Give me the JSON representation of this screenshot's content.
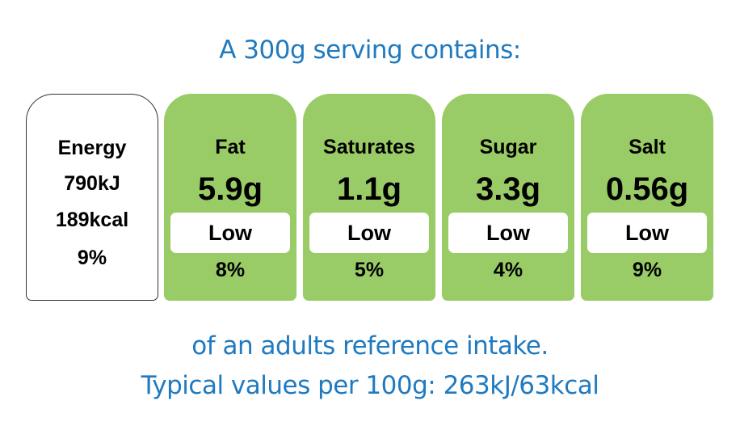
{
  "intro": "A 300g serving contains:",
  "energy": {
    "label": "Energy",
    "kj": "790kJ",
    "kcal": "189kcal",
    "percent": "9%"
  },
  "nutrients": [
    {
      "name": "Fat",
      "amount": "5.9g",
      "level": "Low",
      "percent": "8%"
    },
    {
      "name": "Saturates",
      "amount": "1.1g",
      "level": "Low",
      "percent": "5%"
    },
    {
      "name": "Sugar",
      "amount": "3.3g",
      "level": "Low",
      "percent": "4%"
    },
    {
      "name": "Salt",
      "amount": "0.56g",
      "level": "Low",
      "percent": "9%"
    }
  ],
  "footer": {
    "line1": "of an adults reference intake.",
    "line2": "Typical values per 100g: 263kJ/63kcal"
  },
  "colors": {
    "heading_text": "#1f7ac0",
    "low_level_green": "#99cc66",
    "energy_card": "#ffffff"
  }
}
